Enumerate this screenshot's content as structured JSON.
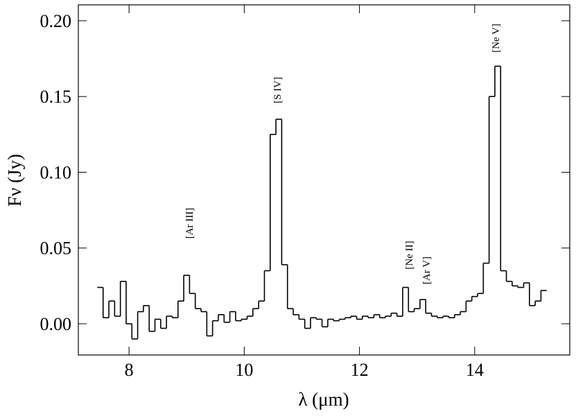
{
  "chart_data": {
    "type": "step",
    "x_label": "λ (μm)",
    "y_label": "Fν (Jy)",
    "xlim": [
      7.12,
      15.65
    ],
    "ylim": [
      -0.0206,
      0.2105
    ],
    "xticks": [
      8,
      10,
      12,
      14
    ],
    "yticks": [
      {
        "value": 0,
        "label": "0.00"
      },
      {
        "value": 0.05,
        "label": "0.05"
      },
      {
        "value": 0.1,
        "label": "0.10"
      },
      {
        "value": 0.15,
        "label": "0.15"
      },
      {
        "value": 0.2,
        "label": "0.20"
      }
    ],
    "color": "#000000",
    "annotations": [
      "[Ar III]",
      "[S IV]",
      "[Ne II]",
      "[Ar V]",
      "[Ne V]"
    ],
    "x": [
      7.5,
      7.6,
      7.7,
      7.8,
      7.9,
      8.0,
      8.1,
      8.2,
      8.3,
      8.4,
      8.5,
      8.6,
      8.7,
      8.8,
      8.9,
      9.0,
      9.1,
      9.2,
      9.3,
      9.4,
      9.5,
      9.6,
      9.7,
      9.8,
      9.9,
      10.0,
      10.1,
      10.2,
      10.3,
      10.4,
      10.5,
      10.6,
      10.7,
      10.8,
      10.9,
      11.0,
      11.1,
      11.2,
      11.3,
      11.4,
      11.5,
      11.6,
      11.7,
      11.8,
      11.9,
      12.0,
      12.1,
      12.2,
      12.3,
      12.4,
      12.5,
      12.6,
      12.7,
      12.8,
      12.9,
      13.0,
      13.1,
      13.2,
      13.3,
      13.4,
      13.5,
      13.6,
      13.7,
      13.8,
      13.9,
      14.0,
      14.1,
      14.2,
      14.3,
      14.4,
      14.5,
      14.6,
      14.7,
      14.8,
      14.9,
      15.0,
      15.1,
      15.2
    ],
    "values": [
      0.024,
      0.004,
      0.015,
      0.005,
      0.028,
      0.0,
      -0.01,
      0.008,
      0.012,
      -0.005,
      0.003,
      -0.003,
      0.005,
      0.004,
      0.015,
      0.032,
      0.02,
      0.01,
      0.008,
      -0.008,
      0.002,
      0.006,
      0.001,
      0.008,
      0.002,
      0.003,
      0.005,
      0.01,
      0.015,
      0.035,
      0.125,
      0.135,
      0.039,
      0.01,
      0.006,
      0.003,
      -0.003,
      0.004,
      0.003,
      -0.002,
      0.003,
      0.002,
      0.003,
      0.004,
      0.005,
      0.003,
      0.005,
      0.004,
      0.006,
      0.004,
      0.005,
      0.007,
      0.005,
      0.024,
      0.008,
      0.01,
      0.016,
      0.007,
      0.005,
      0.004,
      0.005,
      0.004,
      0.006,
      0.008,
      0.015,
      0.018,
      0.02,
      0.04,
      0.15,
      0.17,
      0.035,
      0.028,
      0.025,
      0.024,
      0.027,
      0.012,
      0.015,
      0.022
    ]
  }
}
